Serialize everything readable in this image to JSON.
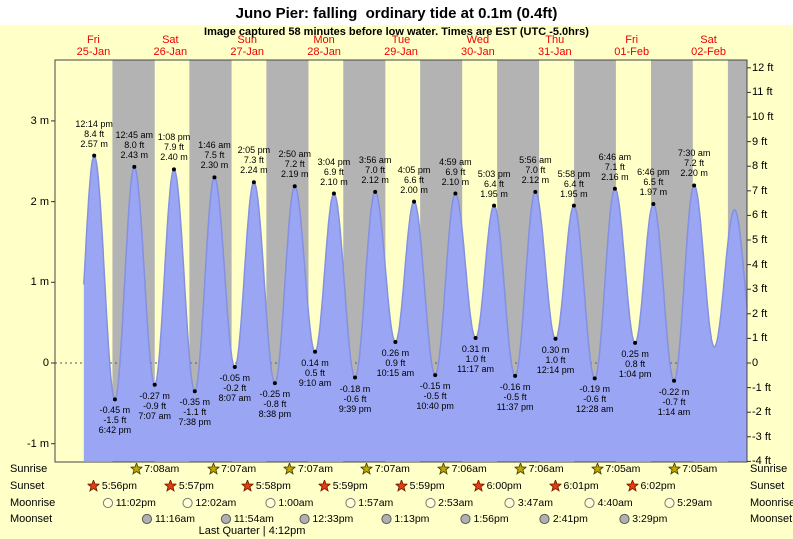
{
  "header": {
    "title": "Juno Pier: falling  ordinary tide at 0.1m (0.4ft)",
    "subtitle": "Image captured 58 minutes before low water. Times are EST (UTC -5.0hrs)"
  },
  "chart_data": {
    "type": "area",
    "title": "Juno Pier tide curve",
    "x_start": "Fri 25-Jan 00:00",
    "xlim_hours": [
      0,
      216
    ],
    "ylim_m": [
      -1.25,
      3.75
    ],
    "days": [
      {
        "name": "Fri",
        "date": "25-Jan"
      },
      {
        "name": "Sat",
        "date": "26-Jan"
      },
      {
        "name": "Sun",
        "date": "27-Jan"
      },
      {
        "name": "Mon",
        "date": "28-Jan"
      },
      {
        "name": "Tue",
        "date": "29-Jan"
      },
      {
        "name": "Wed",
        "date": "30-Jan"
      },
      {
        "name": "Thu",
        "date": "31-Jan"
      },
      {
        "name": "Fri",
        "date": "01-Feb"
      },
      {
        "name": "Sat",
        "date": "02-Feb"
      }
    ],
    "y_axis_left": {
      "unit": "m",
      "ticks": [
        {
          "v": 3,
          "label": "3 m"
        },
        {
          "v": 2,
          "label": "2 m"
        },
        {
          "v": 1,
          "label": "1 m"
        },
        {
          "v": 0,
          "label": "0"
        },
        {
          "v": -1,
          "label": "-1 m"
        }
      ]
    },
    "y_axis_right": {
      "unit": "ft",
      "ticks": [
        {
          "v": 12,
          "label": "12 ft"
        },
        {
          "v": 11,
          "label": "11 ft"
        },
        {
          "v": 10,
          "label": "10 ft"
        },
        {
          "v": 9,
          "label": "9 ft"
        },
        {
          "v": 8,
          "label": "8 ft"
        },
        {
          "v": 7,
          "label": "7 ft"
        },
        {
          "v": 6,
          "label": "6 ft"
        },
        {
          "v": 5,
          "label": "5 ft"
        },
        {
          "v": 4,
          "label": "4 ft"
        },
        {
          "v": 3,
          "label": "3 ft"
        },
        {
          "v": 2,
          "label": "2 ft"
        },
        {
          "v": 1,
          "label": "1 ft"
        },
        {
          "v": 0,
          "label": "0"
        },
        {
          "v": -1,
          "label": "-1 ft"
        },
        {
          "v": -2,
          "label": "-2 ft"
        },
        {
          "v": -3,
          "label": "-3 ft"
        },
        {
          "v": -4,
          "label": "-4 ft"
        }
      ]
    },
    "tides": [
      {
        "kind": "high",
        "t": 12.23,
        "height_m": 2.57,
        "time": "12:14 pm",
        "ft": "8.4 ft",
        "m": "2.57 m"
      },
      {
        "kind": "low",
        "t": 18.7,
        "height_m": -0.45,
        "time": "6:42 pm",
        "ft": "-1.5 ft",
        "m": "-0.45 m"
      },
      {
        "kind": "high",
        "t": 24.75,
        "height_m": 2.43,
        "time": "12:45 am",
        "ft": "8.0 ft",
        "m": "2.43 m"
      },
      {
        "kind": "low",
        "t": 31.12,
        "height_m": -0.27,
        "time": "7:07 am",
        "ft": "-0.9 ft",
        "m": "-0.27 m"
      },
      {
        "kind": "high",
        "t": 37.13,
        "height_m": 2.4,
        "time": "1:08 pm",
        "ft": "7.9 ft",
        "m": "2.40 m"
      },
      {
        "kind": "low",
        "t": 43.63,
        "height_m": -0.35,
        "time": "7:38 pm",
        "ft": "-1.1 ft",
        "m": "-0.35 m"
      },
      {
        "kind": "high",
        "t": 49.77,
        "height_m": 2.3,
        "time": "1:46 am",
        "ft": "7.5 ft",
        "m": "2.30 m"
      },
      {
        "kind": "low",
        "t": 56.12,
        "height_m": -0.05,
        "time": "8:07 am",
        "ft": "-0.2 ft",
        "m": "-0.05 m"
      },
      {
        "kind": "high",
        "t": 62.08,
        "height_m": 2.24,
        "time": "2:05 pm",
        "ft": "7.3 ft",
        "m": "2.24 m"
      },
      {
        "kind": "low",
        "t": 68.63,
        "height_m": -0.25,
        "time": "8:38 pm",
        "ft": "-0.8 ft",
        "m": "-0.25 m"
      },
      {
        "kind": "high",
        "t": 74.83,
        "height_m": 2.19,
        "time": "2:50 am",
        "ft": "7.2 ft",
        "m": "2.19 m"
      },
      {
        "kind": "low",
        "t": 81.17,
        "height_m": 0.14,
        "time": "9:10 am",
        "ft": "0.5 ft",
        "m": "0.14 m"
      },
      {
        "kind": "high",
        "t": 87.07,
        "height_m": 2.1,
        "time": "3:04 pm",
        "ft": "6.9 ft",
        "m": "2.10 m"
      },
      {
        "kind": "low",
        "t": 93.65,
        "height_m": -0.18,
        "time": "9:39 pm",
        "ft": "-0.6 ft",
        "m": "-0.18 m"
      },
      {
        "kind": "high",
        "t": 99.93,
        "height_m": 2.12,
        "time": "3:56 am",
        "ft": "7.0 ft",
        "m": "2.12 m"
      },
      {
        "kind": "low",
        "t": 106.25,
        "height_m": 0.26,
        "time": "10:15 am",
        "ft": "0.9 ft",
        "m": "0.26 m"
      },
      {
        "kind": "high",
        "t": 112.08,
        "height_m": 2.0,
        "time": "4:05 pm",
        "ft": "6.6 ft",
        "m": "2.00 m"
      },
      {
        "kind": "low",
        "t": 118.67,
        "height_m": -0.15,
        "time": "10:40 pm",
        "ft": "-0.5 ft",
        "m": "-0.15 m"
      },
      {
        "kind": "high",
        "t": 124.98,
        "height_m": 2.1,
        "time": "4:59 am",
        "ft": "6.9 ft",
        "m": "2.10 m"
      },
      {
        "kind": "low",
        "t": 131.28,
        "height_m": 0.31,
        "time": "11:17 am",
        "ft": "1.0 ft",
        "m": "0.31 m"
      },
      {
        "kind": "high",
        "t": 137.05,
        "height_m": 1.95,
        "time": "5:03 pm",
        "ft": "6.4 ft",
        "m": "1.95 m"
      },
      {
        "kind": "low",
        "t": 143.62,
        "height_m": -0.16,
        "time": "11:37 pm",
        "ft": "-0.5 ft",
        "m": "-0.16 m"
      },
      {
        "kind": "high",
        "t": 149.93,
        "height_m": 2.12,
        "time": "5:56 am",
        "ft": "7.0 ft",
        "m": "2.12 m"
      },
      {
        "kind": "low",
        "t": 156.23,
        "height_m": 0.3,
        "time": "12:14 pm",
        "ft": "1.0 ft",
        "m": "0.30 m"
      },
      {
        "kind": "high",
        "t": 161.97,
        "height_m": 1.95,
        "time": "5:58 pm",
        "ft": "6.4 ft",
        "m": "1.95 m"
      },
      {
        "kind": "low",
        "t": 168.47,
        "height_m": -0.19,
        "time": "12:28 am",
        "ft": "-0.6 ft",
        "m": "-0.19 m"
      },
      {
        "kind": "high",
        "t": 174.77,
        "height_m": 2.16,
        "time": "6:46 am",
        "ft": "7.1 ft",
        "m": "2.16 m"
      },
      {
        "kind": "low",
        "t": 181.07,
        "height_m": 0.25,
        "time": "1:04 pm",
        "ft": "0.8 ft",
        "m": "0.25 m"
      },
      {
        "kind": "high",
        "t": 186.77,
        "height_m": 1.97,
        "time": "6:46 pm",
        "ft": "6.5 ft",
        "m": "1.97 m"
      },
      {
        "kind": "low",
        "t": 193.23,
        "height_m": -0.22,
        "time": "1:14 am",
        "ft": "-0.7 ft",
        "m": "-0.22 m"
      },
      {
        "kind": "high",
        "t": 199.5,
        "height_m": 2.2,
        "time": "7:30 am",
        "ft": "7.2 ft",
        "m": "2.20 m"
      }
    ],
    "curve_start_t": 9,
    "curve_helpers": [
      [
        6.2,
        -0.3
      ],
      [
        205.8,
        0.2
      ],
      [
        212.1,
        1.9
      ],
      [
        218.5,
        0.1
      ]
    ],
    "night_bands": [
      [
        17.93,
        31.13
      ],
      [
        41.95,
        55.12
      ],
      [
        65.97,
        79.12
      ],
      [
        89.98,
        103.12
      ],
      [
        113.98,
        127.1
      ],
      [
        138.0,
        151.1
      ],
      [
        162.02,
        175.08
      ],
      [
        186.03,
        199.08
      ],
      [
        210.03,
        216
      ]
    ],
    "astro": {
      "rows": [
        {
          "name": "Sunrise",
          "icon": "sunrise-icon",
          "events": [
            {
              "t": 31.13,
              "label": "7:08am"
            },
            {
              "t": 55.12,
              "label": "7:07am"
            },
            {
              "t": 79.12,
              "label": "7:07am"
            },
            {
              "t": 103.12,
              "label": "7:07am"
            },
            {
              "t": 127.1,
              "label": "7:06am"
            },
            {
              "t": 151.1,
              "label": "7:06am"
            },
            {
              "t": 175.08,
              "label": "7:05am"
            },
            {
              "t": 199.08,
              "label": "7:05am"
            }
          ]
        },
        {
          "name": "Sunset",
          "icon": "sunset-icon",
          "events": [
            {
              "t": 17.93,
              "label": "5:56pm"
            },
            {
              "t": 41.95,
              "label": "5:57pm"
            },
            {
              "t": 65.97,
              "label": "5:58pm"
            },
            {
              "t": 89.98,
              "label": "5:59pm"
            },
            {
              "t": 113.98,
              "label": "5:59pm"
            },
            {
              "t": 138.0,
              "label": "6:00pm"
            },
            {
              "t": 162.02,
              "label": "6:01pm"
            },
            {
              "t": 186.03,
              "label": "6:02pm"
            }
          ]
        },
        {
          "name": "Moonrise",
          "icon": "moonrise-icon",
          "events": [
            {
              "t": 23.03,
              "label": "11:02pm"
            },
            {
              "t": 48.03,
              "label": "12:02am"
            },
            {
              "t": 73.0,
              "label": "1:00am"
            },
            {
              "t": 97.95,
              "label": "1:57am"
            },
            {
              "t": 122.88,
              "label": "2:53am"
            },
            {
              "t": 147.78,
              "label": "3:47am"
            },
            {
              "t": 172.67,
              "label": "4:40am"
            },
            {
              "t": 197.48,
              "label": "5:29am"
            }
          ]
        },
        {
          "name": "Moonset",
          "icon": "moonset-icon",
          "events": [
            {
              "t": 35.27,
              "label": "11:16am"
            },
            {
              "t": 59.9,
              "label": "11:54am"
            },
            {
              "t": 84.55,
              "label": "12:33pm"
            },
            {
              "t": 109.22,
              "label": "1:13pm"
            },
            {
              "t": 133.93,
              "label": "1:56pm"
            },
            {
              "t": 158.68,
              "label": "2:41pm"
            },
            {
              "t": 183.48,
              "label": "3:29pm"
            }
          ]
        }
      ],
      "last_quarter": "Last Quarter | 4:12pm"
    },
    "colors": {
      "background": "#ffffc8",
      "day_band": "#ffffc8",
      "night_band": "#b3b3b3",
      "tide_fill": "#9aa6f4",
      "tide_stroke": "#8490e0",
      "day_label": "#f00000",
      "plot_border": "#444444",
      "sunrise_icon_fill": "#c0a800",
      "sunrise_icon_stroke": "#4a4000",
      "sunset_icon_fill": "#e83c10",
      "sunset_icon_stroke": "#701c00",
      "moonrise_icon_fill": "#ffffd8",
      "moonrise_icon_stroke": "#7a7a7a",
      "moonset_icon_fill": "#b0b0b0",
      "moonset_icon_stroke": "#5a5a5a"
    }
  }
}
